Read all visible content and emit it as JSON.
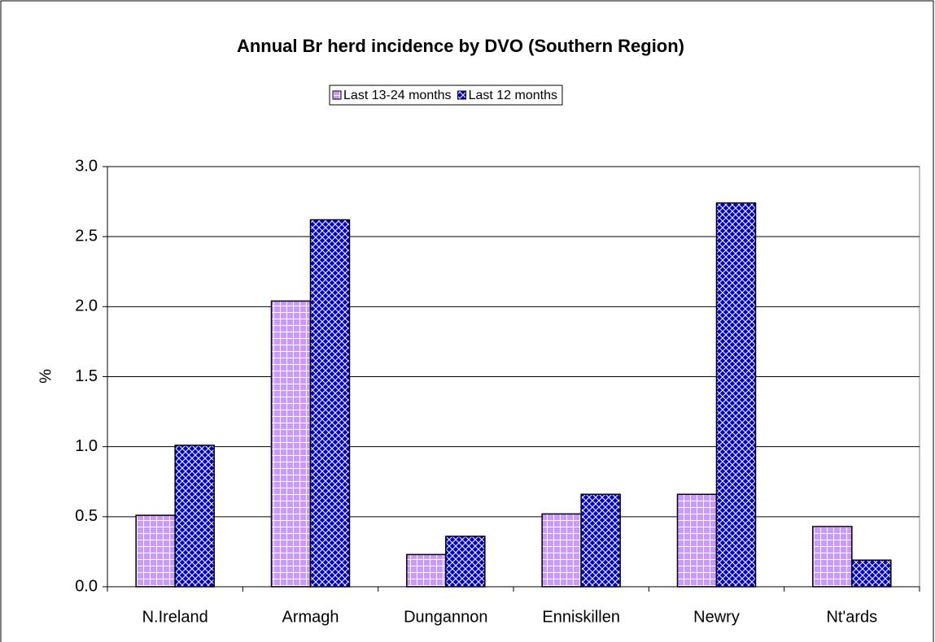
{
  "chart_data": {
    "type": "bar",
    "title": "Annual Br herd incidence by DVO (Southern Region)",
    "y_label": "%",
    "categories": [
      "N.Ireland",
      "Armagh",
      "Dungannon",
      "Enniskillen",
      "Newry",
      "Nt'ards"
    ],
    "series": [
      {
        "name": "Last 13-24 months",
        "color": "#cc99ff",
        "values": [
          0.51,
          2.04,
          0.23,
          0.52,
          0.66,
          0.43
        ]
      },
      {
        "name": "Last 12 months",
        "color": "#0000cc",
        "values": [
          1.01,
          2.62,
          0.36,
          0.66,
          2.74,
          0.19
        ]
      }
    ],
    "ylim": [
      0,
      3
    ],
    "yticks": [
      {
        "value": 0,
        "label": "0.0"
      },
      0.5,
      {
        "value": 1,
        "label": "1.0"
      },
      1.5,
      {
        "value": 2,
        "label": "2.0"
      },
      2.5,
      {
        "value": 3,
        "label": "3.0"
      }
    ],
    "grid": true,
    "legend": "top"
  }
}
